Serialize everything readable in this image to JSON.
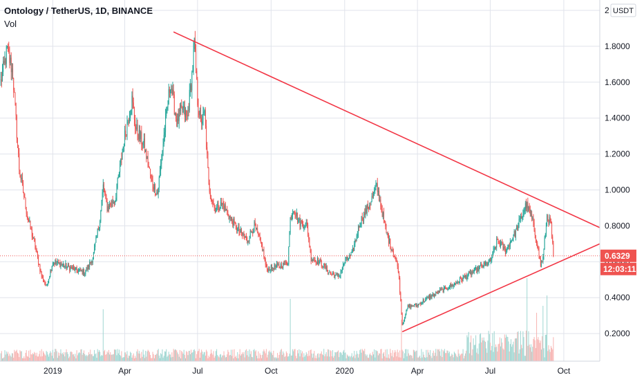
{
  "header": {
    "title": "Ontology / TetherUS, 1D, BINANCE",
    "volume_label": "Vol"
  },
  "price_scale": {
    "currency": "USDT",
    "top_tick": "2",
    "ticks": [
      "1.8000",
      "1.6000",
      "1.4000",
      "1.2000",
      "1.0000",
      "0.8000",
      "0.6000",
      "0.4000",
      "0.2000"
    ]
  },
  "last_price": {
    "value": "0.6329",
    "countdown": "12:03:11",
    "color": "#ef5350"
  },
  "colors": {
    "up": "#26a69a",
    "down": "#ef5350",
    "trendline": "#f23645",
    "volume_up": "#9fd6d1",
    "volume_down": "#f7b3b1",
    "grid": "#e0e3eb"
  },
  "chart_data": {
    "type": "candlestick",
    "symbol": "Ontology / TetherUS",
    "interval": "1D",
    "exchange": "BINANCE",
    "x_tick_labels": [
      "2019",
      "Apr",
      "Jul",
      "Oct",
      "2020",
      "Apr",
      "Jul",
      "Oct"
    ],
    "y_ticks": [
      0.2,
      0.4,
      0.6,
      0.8,
      1.0,
      1.2,
      1.4,
      1.6,
      1.8,
      2.0
    ],
    "ylim": [
      0.0,
      2.0
    ],
    "xlim": [
      "2018-10-27",
      "2020-11-15"
    ],
    "price_anchors": [
      [
        "2018-10-28",
        1.6
      ],
      [
        "2018-11-05",
        1.78
      ],
      [
        "2018-11-12",
        1.65
      ],
      [
        "2018-11-20",
        1.12
      ],
      [
        "2018-11-30",
        0.86
      ],
      [
        "2018-12-10",
        0.68
      ],
      [
        "2018-12-18",
        0.52
      ],
      [
        "2018-12-24",
        0.46
      ],
      [
        "2019-01-01",
        0.6
      ],
      [
        "2019-01-15",
        0.58
      ],
      [
        "2019-02-01",
        0.55
      ],
      [
        "2019-02-10",
        0.54
      ],
      [
        "2019-02-20",
        0.62
      ],
      [
        "2019-03-01",
        0.84
      ],
      [
        "2019-03-05",
        1.02
      ],
      [
        "2019-03-10",
        0.9
      ],
      [
        "2019-03-20",
        0.95
      ],
      [
        "2019-04-01",
        1.3
      ],
      [
        "2019-04-10",
        1.5
      ],
      [
        "2019-04-15",
        1.34
      ],
      [
        "2019-04-25",
        1.25
      ],
      [
        "2019-05-05",
        1.04
      ],
      [
        "2019-05-12",
        0.98
      ],
      [
        "2019-05-20",
        1.3
      ],
      [
        "2019-05-28",
        1.6
      ],
      [
        "2019-06-05",
        1.38
      ],
      [
        "2019-06-12",
        1.45
      ],
      [
        "2019-06-18",
        1.4
      ],
      [
        "2019-06-25",
        1.68
      ],
      [
        "2019-06-27",
        1.82
      ],
      [
        "2019-07-01",
        1.5
      ],
      [
        "2019-07-05",
        1.38
      ],
      [
        "2019-07-10",
        1.42
      ],
      [
        "2019-07-15",
        1.02
      ],
      [
        "2019-07-22",
        0.9
      ],
      [
        "2019-08-01",
        0.92
      ],
      [
        "2019-08-10",
        0.85
      ],
      [
        "2019-08-20",
        0.78
      ],
      [
        "2019-09-01",
        0.72
      ],
      [
        "2019-09-10",
        0.8
      ],
      [
        "2019-09-20",
        0.68
      ],
      [
        "2019-09-25",
        0.56
      ],
      [
        "2019-10-05",
        0.57
      ],
      [
        "2019-10-15",
        0.58
      ],
      [
        "2019-10-22",
        0.6
      ],
      [
        "2019-10-25",
        0.84
      ],
      [
        "2019-10-29",
        0.9
      ],
      [
        "2019-11-05",
        0.82
      ],
      [
        "2019-11-15",
        0.8
      ],
      [
        "2019-11-20",
        0.62
      ],
      [
        "2019-12-01",
        0.6
      ],
      [
        "2019-12-15",
        0.53
      ],
      [
        "2019-12-25",
        0.52
      ],
      [
        "2020-01-01",
        0.6
      ],
      [
        "2020-01-10",
        0.64
      ],
      [
        "2020-01-20",
        0.82
      ],
      [
        "2020-02-01",
        0.92
      ],
      [
        "2020-02-10",
        1.02
      ],
      [
        "2020-02-15",
        0.92
      ],
      [
        "2020-02-22",
        0.76
      ],
      [
        "2020-03-01",
        0.66
      ],
      [
        "2020-03-08",
        0.56
      ],
      [
        "2020-03-12",
        0.32
      ],
      [
        "2020-03-13",
        0.25
      ],
      [
        "2020-03-20",
        0.35
      ],
      [
        "2020-04-01",
        0.36
      ],
      [
        "2020-04-15",
        0.4
      ],
      [
        "2020-05-01",
        0.44
      ],
      [
        "2020-05-15",
        0.47
      ],
      [
        "2020-06-01",
        0.52
      ],
      [
        "2020-06-15",
        0.56
      ],
      [
        "2020-07-01",
        0.6
      ],
      [
        "2020-07-10",
        0.72
      ],
      [
        "2020-07-20",
        0.66
      ],
      [
        "2020-08-01",
        0.76
      ],
      [
        "2020-08-10",
        0.86
      ],
      [
        "2020-08-15",
        0.92
      ],
      [
        "2020-08-22",
        0.84
      ],
      [
        "2020-08-28",
        0.72
      ],
      [
        "2020-09-02",
        0.58
      ],
      [
        "2020-09-05",
        0.62
      ],
      [
        "2020-09-10",
        0.86
      ],
      [
        "2020-09-15",
        0.8
      ],
      [
        "2020-09-18",
        0.6329
      ]
    ],
    "trendlines": [
      {
        "name": "descending-resistance",
        "from": [
          "2019-06-01",
          1.88
        ],
        "to": [
          "2020-11-15",
          0.79
        ]
      },
      {
        "name": "ascending-support",
        "from": [
          "2020-03-13",
          0.21
        ],
        "to": [
          "2020-11-15",
          0.7
        ]
      }
    ],
    "last_price": 0.6329,
    "volume_pane": true
  }
}
